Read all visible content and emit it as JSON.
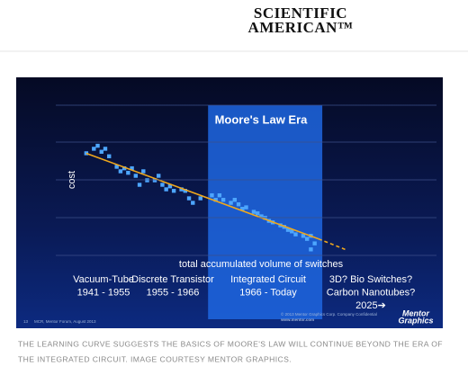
{
  "header": {
    "logo": [
      "SCIENTIFIC",
      "AMERICAN™"
    ]
  },
  "chart_data": {
    "type": "scatter",
    "title": "Moore's Law Era",
    "ylabel": "cost",
    "xlabel": "total accumulated volume of switches",
    "x": [
      8,
      10,
      11,
      12,
      13,
      14,
      16,
      17,
      18,
      19,
      20,
      21,
      22,
      23,
      24,
      26,
      27,
      28,
      29,
      30,
      31,
      33,
      34,
      35,
      36,
      38,
      41,
      42,
      43,
      44,
      46,
      47,
      48,
      49,
      50,
      52,
      53,
      54,
      55,
      56,
      57,
      59,
      60,
      61,
      62,
      63,
      65,
      66,
      67,
      68,
      67
    ],
    "y": [
      68,
      71,
      73,
      69,
      71,
      66,
      59,
      56,
      58,
      55,
      58,
      53,
      47,
      56,
      50,
      50,
      53,
      47,
      44,
      46,
      43,
      44,
      43,
      38,
      35,
      38,
      40,
      37,
      40,
      37,
      35,
      37,
      34,
      31,
      32,
      29,
      28,
      26,
      25,
      23,
      22,
      20,
      19,
      17,
      16,
      14,
      13,
      11,
      13,
      8,
      4
    ],
    "xlim": [
      0,
      100
    ],
    "ylim": [
      0,
      100
    ],
    "color": "#4da6ff",
    "highlight": [
      40,
      70
    ],
    "highlight_color": "#1f66e0",
    "trend": {
      "x": [
        8,
        69
      ],
      "y": [
        68,
        11
      ]
    },
    "projection": {
      "x": [
        69,
        76
      ],
      "y": [
        11,
        4
      ]
    },
    "trend_color": "#f0a81c"
  },
  "slide": {
    "eras": [
      {
        "lines": [
          "Vacuum-Tube",
          "1941 - 1955"
        ]
      },
      {
        "lines": [
          "Discrete Transistor",
          "1955 - 1966"
        ]
      },
      {
        "lines": [
          "Integrated Circuit",
          "1966 - Today"
        ]
      },
      {
        "lines": [
          "3D? Bio Switches?",
          "Carbon Nanotubes?",
          "2025➔"
        ]
      }
    ],
    "page_number": "13",
    "source": "MCR, Mentor Forum, August 2013",
    "copyright": "© 2013 Mentor Graphics Corp.   Company Confidential",
    "url": "www.mentor.com",
    "brand": [
      "Mentor",
      "Graphics"
    ]
  },
  "caption": [
    "THE LEARNING CURVE SUGGESTS THE BASICS OF MOORE'S LAW WILL CONTINUE BEYOND THE ERA OF",
    "THE INTEGRATED CIRCUIT. IMAGE COURTESY MENTOR GRAPHICS."
  ]
}
